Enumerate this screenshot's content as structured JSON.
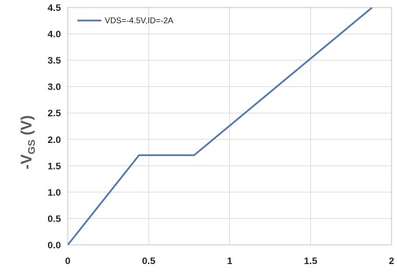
{
  "chart_data": {
    "type": "line",
    "title": "",
    "xlabel": "",
    "ylabel": "-VGS (V)",
    "ylabel_main": "-V",
    "ylabel_sub": "GS",
    "ylabel_unit": " (V)",
    "xlim": [
      0,
      2
    ],
    "ylim": [
      0,
      4.5
    ],
    "xticks": [
      0,
      0.5,
      1,
      1.5,
      2
    ],
    "xtick_labels": [
      "0",
      "0.5",
      "1",
      "1.5",
      "2"
    ],
    "yticks": [
      0,
      0.5,
      1,
      1.5,
      2,
      2.5,
      3,
      3.5,
      4,
      4.5
    ],
    "ytick_labels": [
      "0.0",
      "0.5",
      "1.0",
      "1.5",
      "2.0",
      "2.5",
      "3.0",
      "3.5",
      "4.0",
      "4.5"
    ],
    "grid": true,
    "legend_position": "top-left",
    "series": [
      {
        "name": "VDS=-4.5V,ID=-2A",
        "color": "#4f76b0",
        "x": [
          0,
          0.44,
          0.78,
          1.88
        ],
        "y": [
          0,
          1.7,
          1.7,
          4.5
        ]
      }
    ]
  }
}
